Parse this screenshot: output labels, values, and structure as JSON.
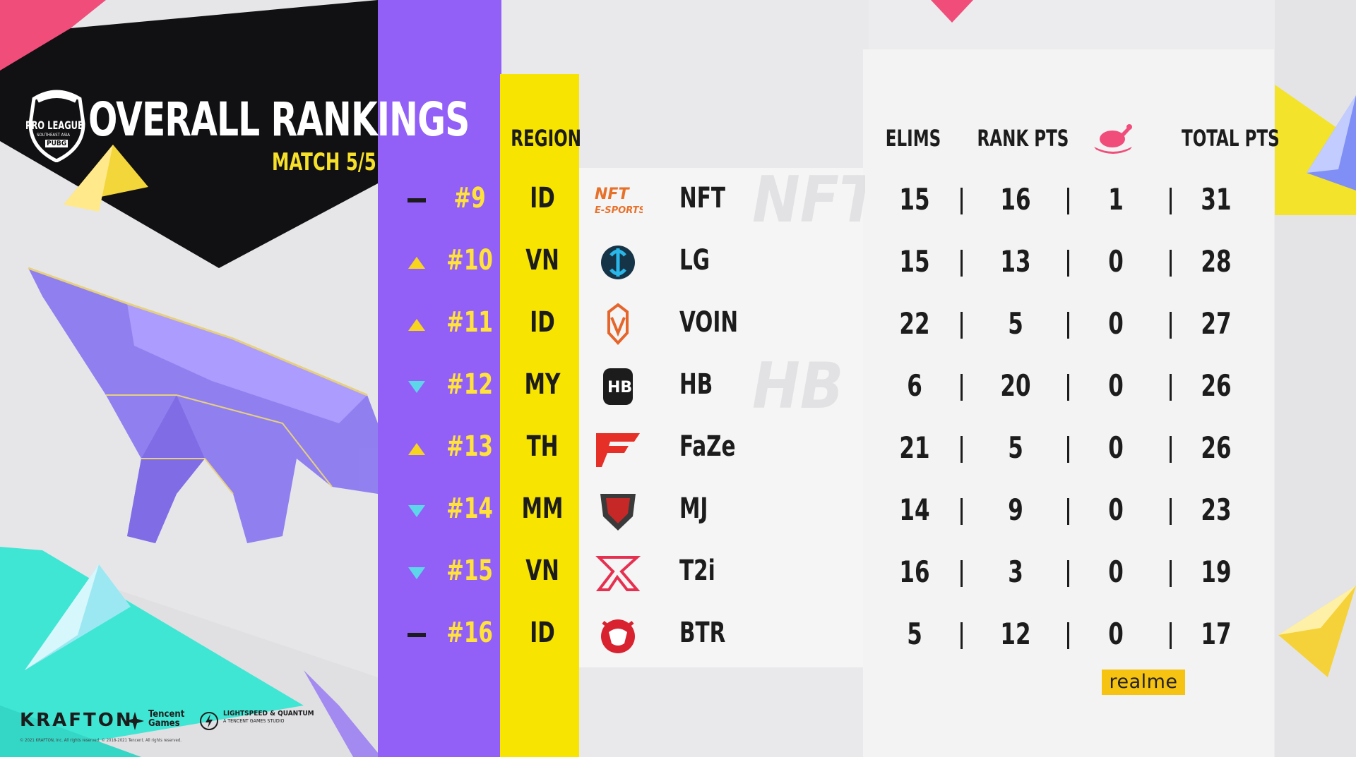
{
  "header": {
    "league_logo_text": "PRO LEAGUE",
    "league_logo_sub": "SOUTHEAST ASIA",
    "league_logo_brand": "PUBG",
    "title": "OVERALL RANKINGS",
    "subtitle": "MATCH 5/5"
  },
  "columns": {
    "region": "REGION",
    "elims": "ELIMS",
    "rank_pts": "RANK PTS",
    "chicken_icon": "chicken-dinner-icon",
    "total_pts": "TOTAL PTS"
  },
  "rows": [
    {
      "trend": "same",
      "rank": "#9",
      "region": "ID",
      "team": "NFT",
      "elims": "15",
      "rank_pts": "16",
      "chicken": "1",
      "total": "31"
    },
    {
      "trend": "up",
      "rank": "#10",
      "region": "VN",
      "team": "LG",
      "elims": "15",
      "rank_pts": "13",
      "chicken": "0",
      "total": "28"
    },
    {
      "trend": "up",
      "rank": "#11",
      "region": "ID",
      "team": "VOIN",
      "elims": "22",
      "rank_pts": "5",
      "chicken": "0",
      "total": "27"
    },
    {
      "trend": "down",
      "rank": "#12",
      "region": "MY",
      "team": "HB",
      "elims": "6",
      "rank_pts": "20",
      "chicken": "0",
      "total": "26"
    },
    {
      "trend": "up",
      "rank": "#13",
      "region": "TH",
      "team": "FaZe",
      "elims": "21",
      "rank_pts": "5",
      "chicken": "0",
      "total": "26"
    },
    {
      "trend": "down",
      "rank": "#14",
      "region": "MM",
      "team": "MJ",
      "elims": "14",
      "rank_pts": "9",
      "chicken": "0",
      "total": "23"
    },
    {
      "trend": "down",
      "rank": "#15",
      "region": "VN",
      "team": "T2i",
      "elims": "16",
      "rank_pts": "3",
      "chicken": "0",
      "total": "19"
    },
    {
      "trend": "same",
      "rank": "#16",
      "region": "ID",
      "team": "BTR",
      "elims": "5",
      "rank_pts": "12",
      "chicken": "0",
      "total": "17"
    }
  ],
  "team_logo_texts": {
    "NFT": "NFT E-SPORTS",
    "HB": "HB"
  },
  "ghost_texts": {
    "NFT": "NFT",
    "HB": "HB"
  },
  "sponsors": {
    "realme": "realme",
    "krafton": "KRAFTON",
    "tencent_line1": "Tencent",
    "tencent_line2": "Games",
    "lightspeed_line1": "LIGHTSPEED & QUANTUM",
    "lightspeed_line2": "A TENCENT GAMES STUDIO",
    "fineprint": "© 2021 KRAFTON, Inc. All rights reserved.   © 2018-2021 Tencent. All rights reserved."
  },
  "colors": {
    "purple": "#9260f7",
    "yellow": "#f7e400",
    "rank_text": "#ffe23a",
    "trend_up": "#f7d41e",
    "trend_down": "#5ed6ea",
    "realme": "#f6c312"
  }
}
